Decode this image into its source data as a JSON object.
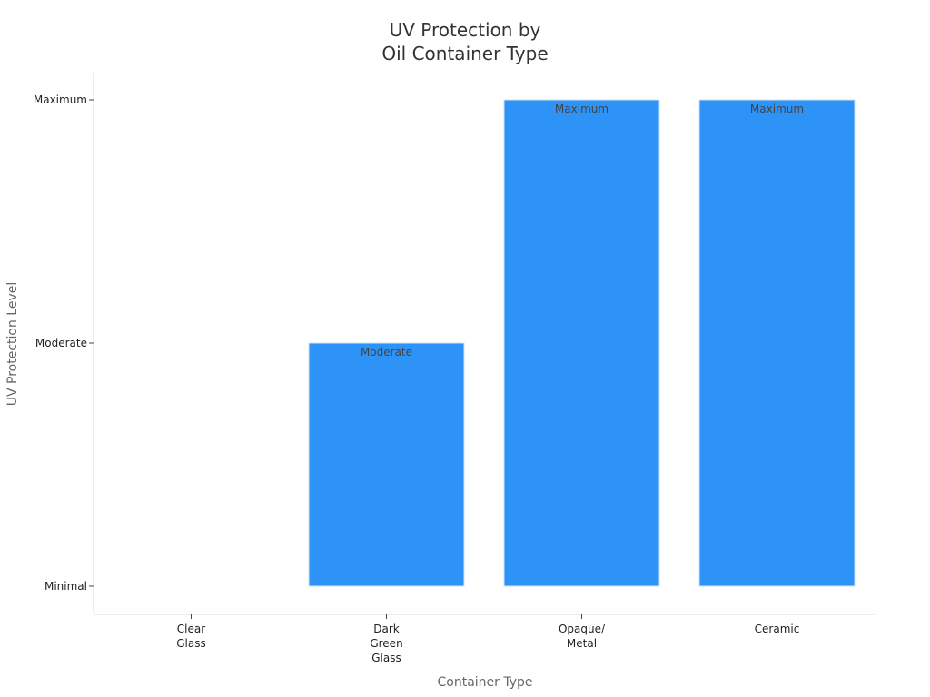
{
  "chart_data": {
    "type": "bar",
    "title": [
      "UV Protection by",
      "Oil Container Type"
    ],
    "xlabel": "Container Type",
    "ylabel": "UV Protection Level",
    "categories": [
      [
        "Clear",
        "Glass"
      ],
      [
        "Dark",
        "Green",
        "Glass"
      ],
      [
        "Opaque/",
        "Metal"
      ],
      [
        "Ceramic"
      ]
    ],
    "y_tick_labels": [
      "Minimal",
      "Moderate",
      "Maximum"
    ],
    "values": [
      0,
      1,
      2,
      2
    ],
    "data_labels": [
      "",
      "Moderate",
      "Maximum",
      "Maximum"
    ],
    "ylim": [
      0,
      2
    ],
    "bar_color": "#2e93f7",
    "grid": false
  }
}
